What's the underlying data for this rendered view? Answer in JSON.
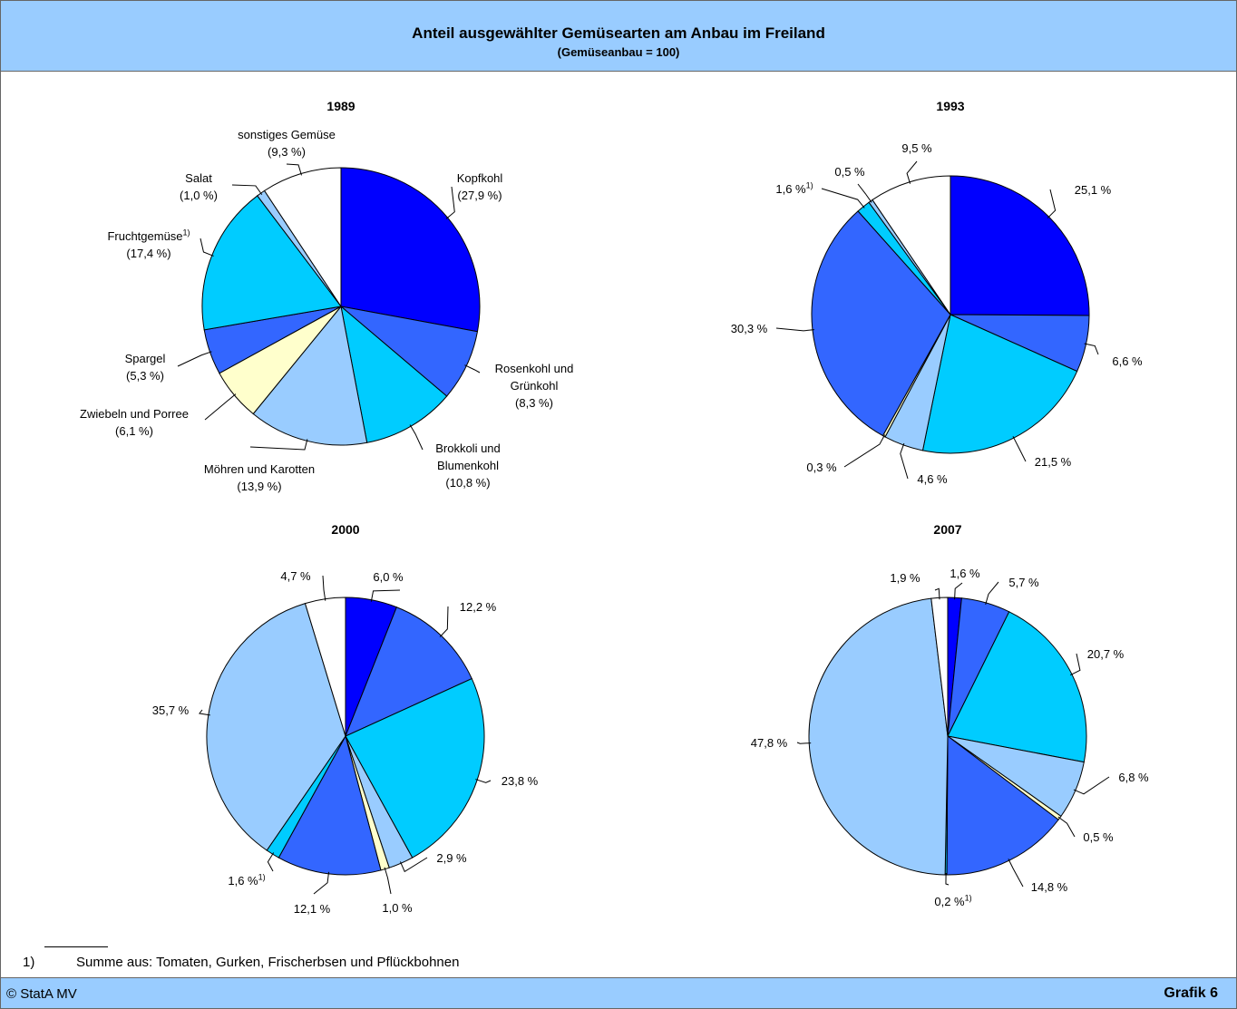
{
  "header": {
    "title": "Anteil ausgewählter Gemüsearten am Anbau im Freiland",
    "subtitle": "(Gemüseanbau = 100)"
  },
  "chart_data": [
    {
      "type": "pie",
      "title": "1989",
      "categories": [
        "Kopfkohl",
        "Rosenkohl und Grünkohl",
        "Brokkoli und Blumenkohl",
        "Möhren und Karotten",
        "Zwiebeln und Porree",
        "Spargel",
        "Fruchtgemüse",
        "Salat",
        "sonstiges Gemüse"
      ],
      "superscripts": [
        null,
        null,
        null,
        null,
        null,
        null,
        "1)",
        null,
        null
      ],
      "values": [
        27.9,
        8.3,
        10.8,
        13.9,
        6.1,
        5.3,
        17.4,
        1.0,
        9.3
      ],
      "value_labels": [
        "(27,9 %)",
        "(8,3 %)",
        "(10,8 %)",
        "(13,9 %)",
        "(6,1 %)",
        "(5,3 %)",
        "(17,4 %)",
        "(1,0 %)",
        "(9,3 %)"
      ],
      "colors": [
        "#0000ff",
        "#3366ff",
        "#00ccff",
        "#99ccff",
        "#ffffcc",
        "#3366ff",
        "#00ccff",
        "#99ccff",
        "#ffffff"
      ]
    },
    {
      "type": "pie",
      "title": "1993",
      "superscripts": [
        null,
        null,
        null,
        null,
        null,
        null,
        "1)",
        null,
        null
      ],
      "values": [
        25.1,
        6.6,
        21.5,
        4.6,
        0.3,
        30.3,
        1.6,
        0.5,
        9.5
      ],
      "value_labels": [
        "25,1 %",
        "6,6 %",
        "21,5 %",
        "4,6 %",
        "0,3 %",
        "30,3 %",
        "1,6 %",
        "0,5 %",
        "9,5 %"
      ],
      "colors": [
        "#0000ff",
        "#3366ff",
        "#00ccff",
        "#99ccff",
        "#ffffcc",
        "#3366ff",
        "#00ccff",
        "#99ccff",
        "#ffffff"
      ]
    },
    {
      "type": "pie",
      "title": "2000",
      "superscripts": [
        null,
        null,
        null,
        null,
        null,
        null,
        "1)",
        null,
        null
      ],
      "values": [
        6.0,
        12.2,
        23.8,
        2.9,
        1.0,
        12.1,
        1.6,
        35.7,
        4.7
      ],
      "value_labels": [
        "6,0 %",
        "12,2 %",
        "23,8 %",
        "2,9 %",
        "1,0 %",
        "12,1 %",
        "1,6 %",
        "35,7 %",
        "4,7 %"
      ],
      "colors": [
        "#0000ff",
        "#3366ff",
        "#00ccff",
        "#99ccff",
        "#ffffcc",
        "#3366ff",
        "#00ccff",
        "#99ccff",
        "#ffffff"
      ]
    },
    {
      "type": "pie",
      "title": "2007",
      "superscripts": [
        null,
        null,
        null,
        null,
        null,
        null,
        "1)",
        null,
        null
      ],
      "values": [
        1.6,
        5.7,
        20.7,
        6.8,
        0.5,
        14.8,
        0.2,
        47.8,
        1.9
      ],
      "value_labels": [
        "1,6 %",
        "5,7 %",
        "20,7 %",
        "6,8 %",
        "0,5 %",
        "14,8 %",
        "0,2 %",
        "47,8 %",
        "1,9 %"
      ],
      "colors": [
        "#0000ff",
        "#3366ff",
        "#00ccff",
        "#99ccff",
        "#ffffcc",
        "#3366ff",
        "#00ccff",
        "#99ccff",
        "#ffffff"
      ]
    }
  ],
  "footnote": {
    "mark": "1)",
    "text": "Summe aus: Tomaten, Gurken, Frischerbsen und Pflückbohnen"
  },
  "footer": {
    "left": "© StatA MV",
    "right": "Grafik 6"
  }
}
